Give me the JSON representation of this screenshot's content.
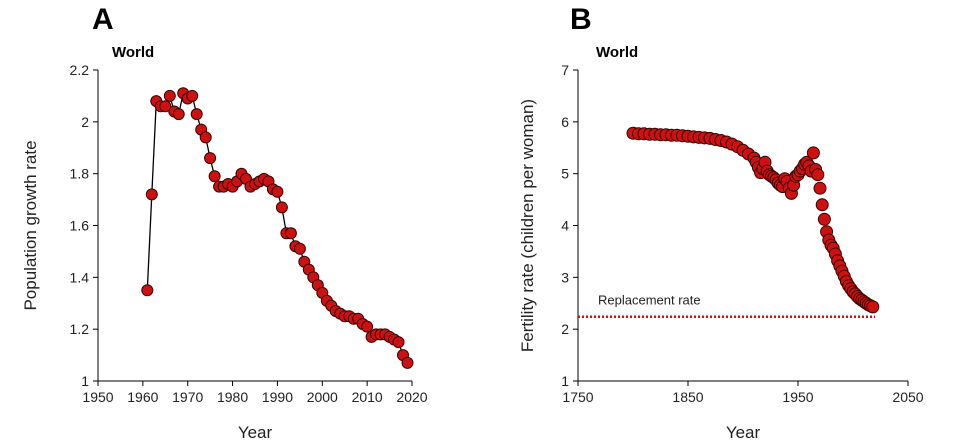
{
  "colors": {
    "marker_fill": "#cc1111",
    "marker_stroke": "#3a0000",
    "line": "#000000",
    "replacement_line": "#cc1111"
  },
  "chart_data": [
    {
      "panel_label": "A",
      "type": "line",
      "title": "World",
      "xlabel": "Year",
      "ylabel": "Population growth rate",
      "xlim": [
        1950,
        2020
      ],
      "ylim": [
        1,
        2.2
      ],
      "x_ticks": [
        "1950",
        "1960",
        "1970",
        "1980",
        "1990",
        "2000",
        "2010",
        "2020"
      ],
      "y_ticks": [
        "1",
        "1.2",
        "1.4",
        "1.6",
        "1.8",
        "2",
        "2.2"
      ],
      "markers": true,
      "x": [
        1961,
        1962,
        1963,
        1964,
        1965,
        1966,
        1967,
        1968,
        1969,
        1970,
        1971,
        1972,
        1973,
        1974,
        1975,
        1976,
        1977,
        1978,
        1979,
        1980,
        1981,
        1982,
        1983,
        1984,
        1985,
        1986,
        1987,
        1988,
        1989,
        1990,
        1991,
        1992,
        1993,
        1994,
        1995,
        1996,
        1997,
        1998,
        1999,
        2000,
        2001,
        2002,
        2003,
        2004,
        2005,
        2006,
        2007,
        2008,
        2009,
        2010,
        2011,
        2012,
        2013,
        2014,
        2015,
        2016,
        2017,
        2018,
        2019
      ],
      "y": [
        1.35,
        1.72,
        2.08,
        2.06,
        2.06,
        2.1,
        2.04,
        2.03,
        2.11,
        2.09,
        2.1,
        2.03,
        1.97,
        1.94,
        1.86,
        1.79,
        1.75,
        1.75,
        1.76,
        1.75,
        1.77,
        1.8,
        1.78,
        1.75,
        1.76,
        1.77,
        1.78,
        1.77,
        1.74,
        1.73,
        1.67,
        1.57,
        1.57,
        1.52,
        1.51,
        1.46,
        1.43,
        1.4,
        1.37,
        1.34,
        1.31,
        1.29,
        1.27,
        1.26,
        1.25,
        1.25,
        1.24,
        1.24,
        1.22,
        1.21,
        1.17,
        1.18,
        1.18,
        1.18,
        1.17,
        1.16,
        1.15,
        1.1,
        1.07
      ]
    },
    {
      "panel_label": "B",
      "type": "scatter",
      "title": "World",
      "xlabel": "Year",
      "ylabel": "Fertility rate (children per woman)",
      "xlim": [
        1750,
        2050
      ],
      "ylim": [
        1,
        7
      ],
      "x_ticks": [
        "1750",
        "1850",
        "1950",
        "2050"
      ],
      "y_ticks": [
        "1",
        "2",
        "3",
        "4",
        "5",
        "6",
        "7"
      ],
      "reference_line": {
        "label": "Replacement rate",
        "y": 2.24
      },
      "x": [
        1800,
        1805,
        1810,
        1815,
        1820,
        1825,
        1830,
        1835,
        1840,
        1845,
        1850,
        1855,
        1860,
        1865,
        1870,
        1875,
        1880,
        1885,
        1890,
        1895,
        1900,
        1905,
        1910,
        1912,
        1914,
        1916,
        1918,
        1920,
        1922,
        1924,
        1926,
        1928,
        1930,
        1932,
        1934,
        1936,
        1938,
        1940,
        1942,
        1944,
        1946,
        1948,
        1950,
        1952,
        1954,
        1956,
        1958,
        1960,
        1962,
        1964,
        1966,
        1968,
        1970,
        1972,
        1974,
        1976,
        1978,
        1980,
        1982,
        1984,
        1986,
        1988,
        1990,
        1992,
        1994,
        1996,
        1998,
        2000,
        2002,
        2004,
        2006,
        2008,
        2010,
        2012,
        2014,
        2016,
        2018
      ],
      "y": [
        5.78,
        5.77,
        5.77,
        5.76,
        5.76,
        5.75,
        5.75,
        5.74,
        5.74,
        5.73,
        5.72,
        5.71,
        5.7,
        5.69,
        5.68,
        5.66,
        5.64,
        5.61,
        5.57,
        5.52,
        5.45,
        5.38,
        5.3,
        5.22,
        5.12,
        5.02,
        5.1,
        5.22,
        5.05,
        4.98,
        4.95,
        4.92,
        4.88,
        4.82,
        4.78,
        4.75,
        4.9,
        4.85,
        4.72,
        4.62,
        4.78,
        4.95,
        4.98,
        5.05,
        5.1,
        5.18,
        5.22,
        5.15,
        5.05,
        5.4,
        5.08,
        4.98,
        4.72,
        4.4,
        4.12,
        3.88,
        3.72,
        3.62,
        3.56,
        3.45,
        3.32,
        3.22,
        3.12,
        3.02,
        2.92,
        2.84,
        2.78,
        2.72,
        2.68,
        2.63,
        2.59,
        2.56,
        2.53,
        2.5,
        2.47,
        2.45,
        2.43
      ]
    }
  ]
}
